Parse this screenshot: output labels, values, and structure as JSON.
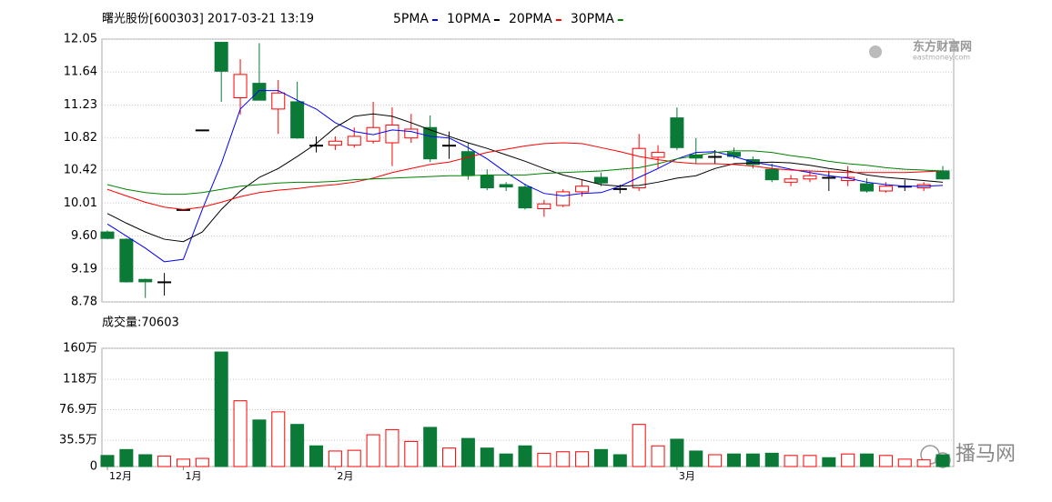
{
  "chart_data": [
    {
      "type": "candlestick",
      "title": "曙光股份[600303] 2017-03-21 13:19",
      "categories": [
        "12月",
        null,
        null,
        null,
        "1月",
        null,
        null,
        null,
        null,
        null,
        null,
        null,
        "2月",
        null,
        null,
        null,
        null,
        null,
        null,
        null,
        null,
        null,
        null,
        null,
        null,
        null,
        null,
        null,
        null,
        null,
        "3月",
        null,
        null,
        null,
        null,
        null,
        null,
        null,
        null,
        null,
        null,
        null,
        null,
        null,
        null
      ],
      "open": [
        9.65,
        9.56,
        9.06,
        9.03,
        9.93,
        10.92,
        12.01,
        11.32,
        11.5,
        11.18,
        11.27,
        10.73,
        10.73,
        10.73,
        10.78,
        10.76,
        10.82,
        10.95,
        10.73,
        10.65,
        10.35,
        10.24,
        10.21,
        9.94,
        9.98,
        10.15,
        10.33,
        10.19,
        10.2,
        10.58,
        11.07,
        10.61,
        10.59,
        10.64,
        10.55,
        10.43,
        10.27,
        10.31,
        10.33,
        10.29,
        10.25,
        10.16,
        10.22,
        10.2,
        10.41
      ],
      "high": [
        9.67,
        9.57,
        9.07,
        9.14,
        9.93,
        10.92,
        12.01,
        11.8,
        12.0,
        11.54,
        11.52,
        10.84,
        10.84,
        10.95,
        11.27,
        11.2,
        11.12,
        11.1,
        10.9,
        10.76,
        10.43,
        10.27,
        10.25,
        10.05,
        10.18,
        10.3,
        10.39,
        10.24,
        10.87,
        10.73,
        11.2,
        10.82,
        10.67,
        10.7,
        10.59,
        10.5,
        10.36,
        10.41,
        10.41,
        10.47,
        10.32,
        10.27,
        10.3,
        10.27,
        10.47
      ],
      "low": [
        9.56,
        9.02,
        8.83,
        8.86,
        9.93,
        10.92,
        11.27,
        11.11,
        11.29,
        10.87,
        10.81,
        10.64,
        10.67,
        10.7,
        10.75,
        10.47,
        10.76,
        10.52,
        10.56,
        10.3,
        10.17,
        10.16,
        9.93,
        9.84,
        9.96,
        10.09,
        10.22,
        10.13,
        10.16,
        10.44,
        10.67,
        10.5,
        10.5,
        10.56,
        10.44,
        10.27,
        10.22,
        10.27,
        10.16,
        10.22,
        10.14,
        10.14,
        10.16,
        10.16,
        10.3
      ],
      "close": [
        9.57,
        9.03,
        9.03,
        9.03,
        9.93,
        10.92,
        11.65,
        11.61,
        11.29,
        11.38,
        10.82,
        10.73,
        10.78,
        10.84,
        10.95,
        10.98,
        10.93,
        10.56,
        10.73,
        10.36,
        10.2,
        10.21,
        9.95,
        10.0,
        10.15,
        10.22,
        10.26,
        10.19,
        10.69,
        10.64,
        10.7,
        10.57,
        10.59,
        10.59,
        10.49,
        10.3,
        10.31,
        10.35,
        10.33,
        10.33,
        10.16,
        10.22,
        10.22,
        10.24,
        10.31
      ],
      "up_color": "#ff0000",
      "down_color": "#0a7a36",
      "flat_color": "#000000",
      "series": [
        {
          "name": "5PMA",
          "color": "#0000ff",
          "values": [
            9.75,
            9.6,
            9.45,
            9.28,
            9.31,
            9.93,
            10.5,
            11.18,
            11.41,
            11.41,
            11.29,
            11.18,
            11.01,
            10.9,
            10.86,
            10.92,
            10.9,
            10.84,
            10.82,
            10.7,
            10.56,
            10.39,
            10.24,
            10.13,
            10.1,
            10.13,
            10.14,
            10.22,
            10.33,
            10.44,
            10.56,
            10.64,
            10.65,
            10.59,
            10.52,
            10.48,
            10.43,
            10.39,
            10.35,
            10.32,
            10.27,
            10.24,
            10.22,
            10.22,
            10.23
          ]
        },
        {
          "name": "10PMA",
          "color": "#000000",
          "values": [
            9.88,
            9.76,
            9.65,
            9.56,
            9.53,
            9.65,
            9.93,
            10.16,
            10.33,
            10.44,
            10.59,
            10.75,
            10.95,
            11.09,
            11.12,
            11.09,
            11.01,
            10.92,
            10.84,
            10.76,
            10.69,
            10.61,
            10.53,
            10.44,
            10.36,
            10.3,
            10.24,
            10.22,
            10.23,
            10.27,
            10.32,
            10.35,
            10.44,
            10.5,
            10.51,
            10.52,
            10.51,
            10.48,
            10.44,
            10.41,
            10.36,
            10.33,
            10.31,
            10.29,
            10.27
          ]
        },
        {
          "name": "20PMA",
          "color": "#ff0000",
          "values": [
            10.18,
            10.1,
            10.02,
            9.96,
            9.93,
            9.96,
            10.02,
            10.09,
            10.14,
            10.17,
            10.19,
            10.22,
            10.24,
            10.27,
            10.32,
            10.39,
            10.44,
            10.49,
            10.52,
            10.58,
            10.64,
            10.68,
            10.72,
            10.75,
            10.76,
            10.75,
            10.7,
            10.65,
            10.59,
            10.55,
            10.52,
            10.5,
            10.5,
            10.49,
            10.47,
            10.44,
            10.42,
            10.41,
            10.4,
            10.39,
            10.39,
            10.39,
            10.39,
            10.4,
            10.41
          ]
        },
        {
          "name": "30PMA",
          "color": "#008000",
          "values": [
            10.24,
            10.18,
            10.14,
            10.12,
            10.12,
            10.14,
            10.18,
            10.22,
            10.24,
            10.26,
            10.27,
            10.27,
            10.28,
            10.3,
            10.31,
            10.32,
            10.33,
            10.34,
            10.35,
            10.35,
            10.36,
            10.36,
            10.36,
            10.38,
            10.39,
            10.4,
            10.41,
            10.43,
            10.45,
            10.5,
            10.56,
            10.6,
            10.64,
            10.66,
            10.66,
            10.64,
            10.6,
            10.57,
            10.53,
            10.5,
            10.48,
            10.45,
            10.43,
            10.42,
            10.41
          ]
        }
      ],
      "ylim": [
        8.78,
        12.05
      ],
      "yticks": [
        12.05,
        11.64,
        11.23,
        10.82,
        10.42,
        10.01,
        {
          "value": 9.6,
          "label": "9.60"
        },
        9.19,
        8.78
      ],
      "grid": true,
      "watermark": [
        "东方财富网",
        "eastmoney.com"
      ]
    },
    {
      "type": "bar",
      "title": "成交量:70603",
      "values": [
        15,
        23,
        16,
        14,
        10,
        11,
        155,
        89,
        63,
        74,
        57,
        28,
        21,
        22,
        43,
        50,
        34,
        53,
        25,
        38,
        25,
        17,
        28,
        18,
        20,
        20,
        23,
        16,
        57,
        28,
        37,
        21,
        16,
        17,
        17,
        18,
        15,
        15,
        12,
        17,
        17,
        15,
        10,
        9,
        16
      ],
      "ylim": [
        0,
        160
      ],
      "yticks": [
        {
          "value": 160,
          "label": "160万"
        },
        {
          "value": 118,
          "label": "118万"
        },
        {
          "value": 76.9,
          "label": "76.9万"
        },
        {
          "value": 35.5,
          "label": "35.5万"
        },
        0
      ],
      "grid": true,
      "watermark": "播马网"
    }
  ]
}
